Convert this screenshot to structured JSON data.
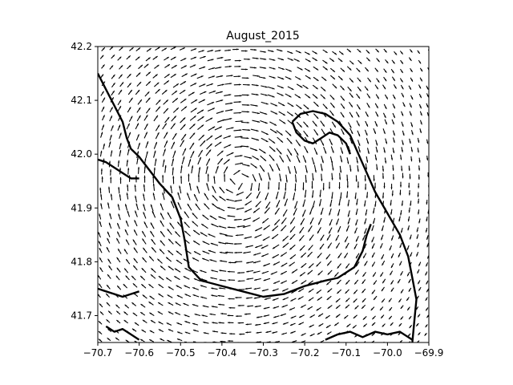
{
  "chart_data": {
    "type": "vector_field",
    "title": "August_2015",
    "xlabel": "",
    "ylabel": "",
    "xlim": [
      -70.7,
      -69.9
    ],
    "ylim": [
      41.65,
      42.2
    ],
    "x_ticks": [
      -70.7,
      -70.6,
      -70.5,
      -70.4,
      -70.3,
      -70.2,
      -70.1,
      -70.0,
      -69.9
    ],
    "y_ticks": [
      41.7,
      41.8,
      41.9,
      42.0,
      42.1,
      42.2
    ],
    "x_tick_labels": [
      "−70.7",
      "−70.6",
      "−70.5",
      "−70.4",
      "−70.3",
      "−70.2",
      "−70.1",
      "−70.0",
      "−69.9"
    ],
    "y_tick_labels": [
      "41.7",
      "41.8",
      "41.9",
      "42.0",
      "42.1",
      "42.2"
    ],
    "series": [
      {
        "kind": "quiver",
        "color": "#000000",
        "circulation": "clockwise eddy",
        "center": [
          -70.36,
          41.95
        ]
      },
      {
        "kind": "coastline",
        "color": "#000000",
        "segments": [
          [
            [
              -70.7,
              42.15
            ],
            [
              -70.68,
              42.12
            ],
            [
              -70.66,
              42.09
            ],
            [
              -70.64,
              42.06
            ],
            [
              -70.63,
              42.03
            ],
            [
              -70.62,
              42.01
            ],
            [
              -70.6,
              41.995
            ],
            [
              -70.58,
              41.975
            ],
            [
              -70.55,
              41.945
            ],
            [
              -70.52,
              41.92
            ],
            [
              -70.5,
              41.88
            ],
            [
              -70.49,
              41.84
            ],
            [
              -70.48,
              41.79
            ],
            [
              -70.45,
              41.765
            ],
            [
              -70.4,
              41.755
            ],
            [
              -70.35,
              41.745
            ],
            [
              -70.3,
              41.735
            ],
            [
              -70.25,
              41.74
            ],
            [
              -70.2,
              41.755
            ],
            [
              -70.15,
              41.765
            ],
            [
              -70.12,
              41.77
            ],
            [
              -70.08,
              41.79
            ],
            [
              -70.06,
              41.82
            ],
            [
              -70.05,
              41.85
            ],
            [
              -70.04,
              41.87
            ]
          ],
          [
            [
              -70.23,
              42.06
            ],
            [
              -70.21,
              42.075
            ],
            [
              -70.18,
              42.08
            ],
            [
              -70.15,
              42.075
            ],
            [
              -70.12,
              42.06
            ],
            [
              -70.09,
              42.035
            ],
            [
              -70.07,
              42.0
            ],
            [
              -70.05,
              41.965
            ],
            [
              -70.03,
              41.93
            ],
            [
              -70.0,
              41.89
            ],
            [
              -69.97,
              41.85
            ],
            [
              -69.95,
              41.81
            ],
            [
              -69.94,
              41.77
            ],
            [
              -69.93,
              41.73
            ],
            [
              -69.935,
              41.69
            ],
            [
              -69.94,
              41.65
            ]
          ],
          [
            [
              -70.23,
              42.06
            ],
            [
              -70.22,
              42.04
            ],
            [
              -70.2,
              42.025
            ],
            [
              -70.18,
              42.02
            ],
            [
              -70.16,
              42.03
            ],
            [
              -70.14,
              42.04
            ],
            [
              -70.12,
              42.035
            ],
            [
              -70.1,
              42.02
            ],
            [
              -70.09,
              42.0
            ]
          ],
          [
            [
              -70.7,
              41.99
            ],
            [
              -70.68,
              41.985
            ],
            [
              -70.66,
              41.975
            ],
            [
              -70.64,
              41.965
            ],
            [
              -70.62,
              41.955
            ],
            [
              -70.6,
              41.955
            ]
          ],
          [
            [
              -70.7,
              41.75
            ],
            [
              -70.68,
              41.745
            ],
            [
              -70.66,
              41.74
            ],
            [
              -70.64,
              41.735
            ],
            [
              -70.62,
              41.74
            ],
            [
              -70.6,
              41.745
            ]
          ],
          [
            [
              -70.68,
              41.68
            ],
            [
              -70.66,
              41.67
            ],
            [
              -70.64,
              41.675
            ],
            [
              -70.62,
              41.665
            ],
            [
              -70.6,
              41.655
            ]
          ],
          [
            [
              -70.15,
              41.655
            ],
            [
              -70.12,
              41.665
            ],
            [
              -70.09,
              41.67
            ],
            [
              -70.06,
              41.66
            ],
            [
              -70.03,
              41.67
            ],
            [
              -70.0,
              41.665
            ],
            [
              -69.97,
              41.67
            ],
            [
              -69.94,
              41.655
            ]
          ]
        ]
      }
    ]
  }
}
